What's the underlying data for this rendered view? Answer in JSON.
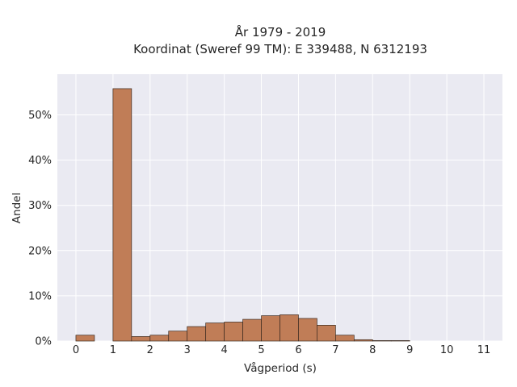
{
  "chart_data": {
    "type": "bar",
    "title_lines": [
      "År 1979 - 2019",
      "Koordinat (Sweref 99 TM): E 339488, N 6312193"
    ],
    "xlabel": "Vågperiod (s)",
    "ylabel": "Andel",
    "xlim": [
      -0.5,
      11.5
    ],
    "ylim": [
      0,
      0.59
    ],
    "xticks": [
      {
        "value": 0,
        "label": "0"
      },
      {
        "value": 1,
        "label": "1"
      },
      {
        "value": 2,
        "label": "2"
      },
      {
        "value": 3,
        "label": "3"
      },
      {
        "value": 4,
        "label": "4"
      },
      {
        "value": 5,
        "label": "5"
      },
      {
        "value": 6,
        "label": "6"
      },
      {
        "value": 7,
        "label": "7"
      },
      {
        "value": 8,
        "label": "8"
      },
      {
        "value": 9,
        "label": "9"
      },
      {
        "value": 10,
        "label": "10"
      },
      {
        "value": 11,
        "label": "11"
      }
    ],
    "yticks": [
      {
        "value": 0,
        "label": "0%"
      },
      {
        "value": 0.1,
        "label": "10%"
      },
      {
        "value": 0.2,
        "label": "20%"
      },
      {
        "value": 0.3,
        "label": "30%"
      },
      {
        "value": 0.4,
        "label": "40%"
      },
      {
        "value": 0.5,
        "label": "50%"
      }
    ],
    "bin_width": 0.5,
    "bins": [
      {
        "start": 0.0,
        "value": 0.013
      },
      {
        "start": 0.5,
        "value": 0.0
      },
      {
        "start": 1.0,
        "value": 0.558
      },
      {
        "start": 1.5,
        "value": 0.01
      },
      {
        "start": 2.0,
        "value": 0.013
      },
      {
        "start": 2.5,
        "value": 0.022
      },
      {
        "start": 3.0,
        "value": 0.032
      },
      {
        "start": 3.5,
        "value": 0.04
      },
      {
        "start": 4.0,
        "value": 0.042
      },
      {
        "start": 4.5,
        "value": 0.048
      },
      {
        "start": 5.0,
        "value": 0.056
      },
      {
        "start": 5.5,
        "value": 0.058
      },
      {
        "start": 6.0,
        "value": 0.05
      },
      {
        "start": 6.5,
        "value": 0.035
      },
      {
        "start": 7.0,
        "value": 0.013
      },
      {
        "start": 7.5,
        "value": 0.003
      },
      {
        "start": 8.0,
        "value": 0.001
      },
      {
        "start": 8.5,
        "value": 0.001
      }
    ],
    "grid": true,
    "colors": {
      "background": "#eaeaf2",
      "grid": "#ffffff",
      "bar_fill": "#c07d57",
      "bar_edge": "#3a2a20",
      "text": "#262626"
    }
  }
}
